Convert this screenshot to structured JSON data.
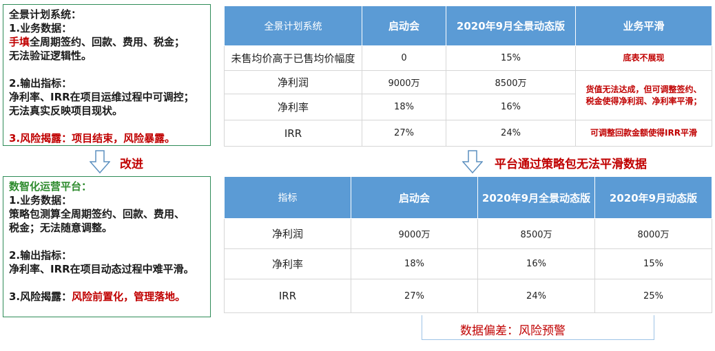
{
  "left_top": {
    "title": "全景计划系统：",
    "s1_title": "1.业务数据：",
    "s1_l1_red": "手填",
    "s1_l1_rest": "全周期签约、回款、费用、税金；",
    "s1_l2": "无法验证逻辑性。",
    "s2_title": "2.输出指标：",
    "s2_l1": "净利率、IRR在项目运维过程中可调控；",
    "s2_l2": "无法真实反映项目现状。",
    "s3": "3.风险揭露：项目结束，风险暴露。"
  },
  "improve_label": "改进",
  "left_bottom": {
    "title": "数智化运营平台：",
    "s1_title": "1.业务数据：",
    "s1_l1": "策略包测算全周期签约、回款、费用、",
    "s1_l2": "税金；无法随意调整。",
    "s2_title": "2.输出指标：",
    "s2_l1": "净利率、IRR在项目动态过程中难平滑。",
    "s3_prefix": "3.风险揭露：",
    "s3_red": "风险前置化，管理落地。"
  },
  "top_table": {
    "headers": [
      "全景计划系统",
      "启动会",
      "2020年9月全景动态版",
      "业务平滑"
    ],
    "rows": [
      {
        "label": "未售均价高于已售均价幅度",
        "c1": "0",
        "c2": "15%"
      },
      {
        "label": "净利润",
        "c1": "9000万",
        "c2": "8500万"
      },
      {
        "label": "净利率",
        "c1": "18%",
        "c2": "16%"
      },
      {
        "label": "IRR",
        "c1": "27%",
        "c2": "24%"
      }
    ],
    "notes": {
      "n1": "底表不展现",
      "n2_l1": "货值无法达成，但可调整签约、",
      "n2_l2": "税金使得净利润、净利率平滑；",
      "n3": "可调整回款金额使得IRR平滑"
    }
  },
  "middle_label": "平台通过策略包无法平滑数据",
  "bottom_table": {
    "headers": [
      "指标",
      "启动会",
      "2020年9月全景动态版",
      "2020年9月动态版"
    ],
    "rows": [
      {
        "label": "净利润",
        "c1": "9000万",
        "c2": "8500万",
        "c3": "8000万"
      },
      {
        "label": "净利率",
        "c1": "18%",
        "c2": "16%",
        "c3": "15%"
      },
      {
        "label": "IRR",
        "c1": "27%",
        "c2": "24%",
        "c3": "25%"
      }
    ]
  },
  "bracket_label": "数据偏差：风险预警",
  "colors": {
    "header_blue": "#5b9bd5",
    "accent_red": "#c00000",
    "box_border_green": "#2e8b57",
    "title_green": "#2e8b2e",
    "arrow_blue": "#5b8fbf"
  },
  "icons": [
    "down-arrow-icon"
  ]
}
